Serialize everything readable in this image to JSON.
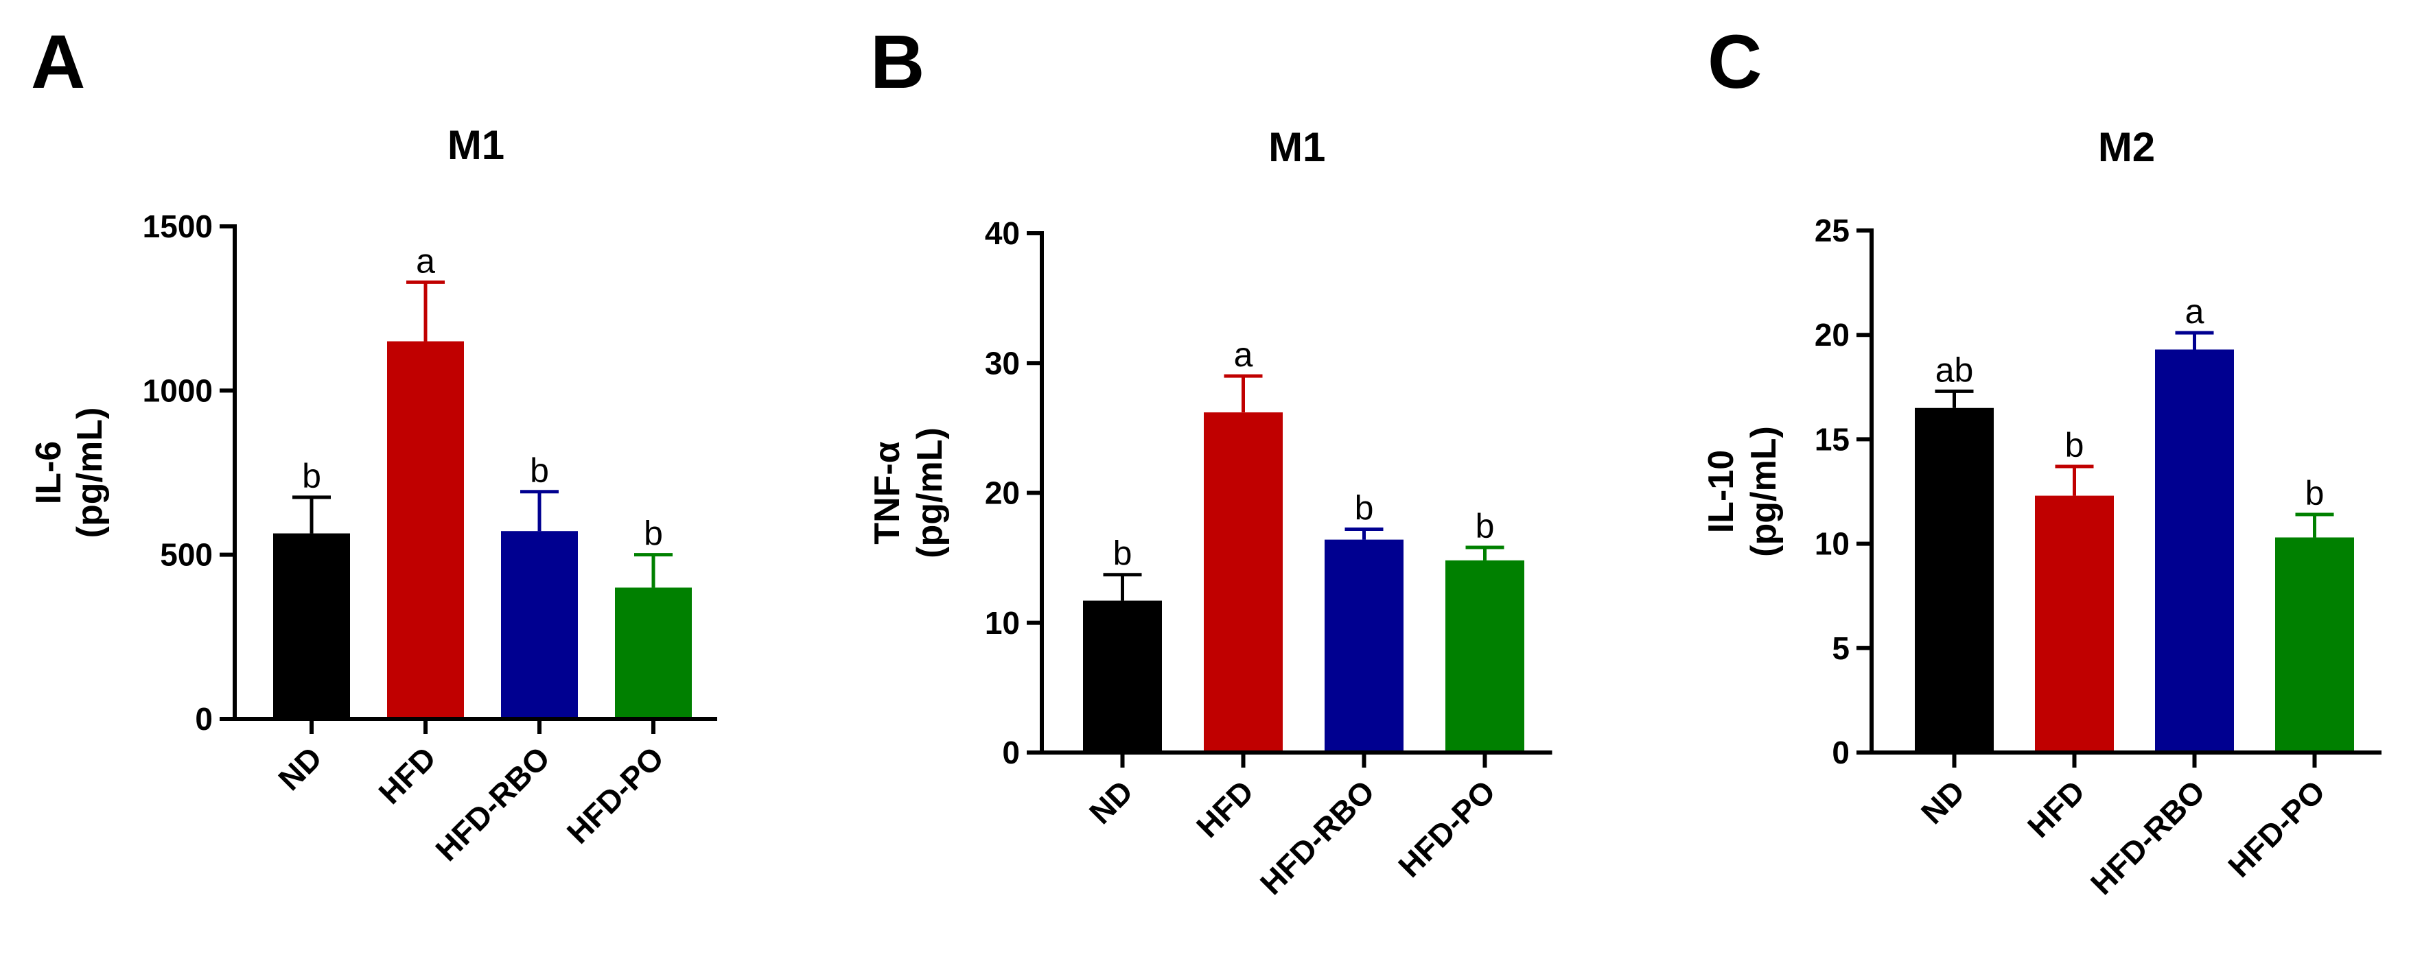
{
  "colors": {
    "ND": "#000000",
    "HFD": "#c00000",
    "HFD-RBO": "#000090",
    "HFD-PO": "#008000"
  },
  "chart_data": [
    {
      "panel": "A",
      "type": "bar",
      "title": "M1",
      "ylabel_line1": "IL-6",
      "ylabel_line2": "(pg/mL)",
      "xlabel": "",
      "categories": [
        "ND",
        "HFD",
        "HFD-RBO",
        "HFD-PO"
      ],
      "values": [
        565,
        1150,
        572,
        400
      ],
      "errors": [
        110,
        180,
        120,
        100
      ],
      "significance": [
        "b",
        "a",
        "b",
        "b"
      ],
      "ylim": [
        0,
        1500
      ],
      "yticks": [
        0,
        500,
        1000,
        1500
      ],
      "grid": false,
      "legend": "none"
    },
    {
      "panel": "B",
      "type": "bar",
      "title": "M1",
      "ylabel_line1": "TNF-α",
      "ylabel_line2": "(pg/mL)",
      "xlabel": "",
      "categories": [
        "ND",
        "HFD",
        "HFD-RBO",
        "HFD-PO"
      ],
      "values": [
        11.7,
        26.2,
        16.4,
        14.8
      ],
      "errors": [
        2.0,
        2.8,
        0.8,
        1.0
      ],
      "significance": [
        "b",
        "a",
        "b",
        "b"
      ],
      "ylim": [
        0,
        40
      ],
      "yticks": [
        0,
        10,
        20,
        30,
        40
      ],
      "grid": false,
      "legend": "none"
    },
    {
      "panel": "C",
      "type": "bar",
      "title": "M2",
      "ylabel_line1": "IL-10",
      "ylabel_line2": "(pg/mL)",
      "xlabel": "",
      "categories": [
        "ND",
        "HFD",
        "HFD-RBO",
        "HFD-PO"
      ],
      "values": [
        16.5,
        12.3,
        19.3,
        10.3
      ],
      "errors": [
        0.8,
        1.4,
        0.8,
        1.1
      ],
      "significance": [
        "ab",
        "b",
        "a",
        "b"
      ],
      "ylim": [
        0,
        25
      ],
      "yticks": [
        0,
        5,
        10,
        15,
        20,
        25
      ],
      "grid": false,
      "legend": "none"
    }
  ]
}
